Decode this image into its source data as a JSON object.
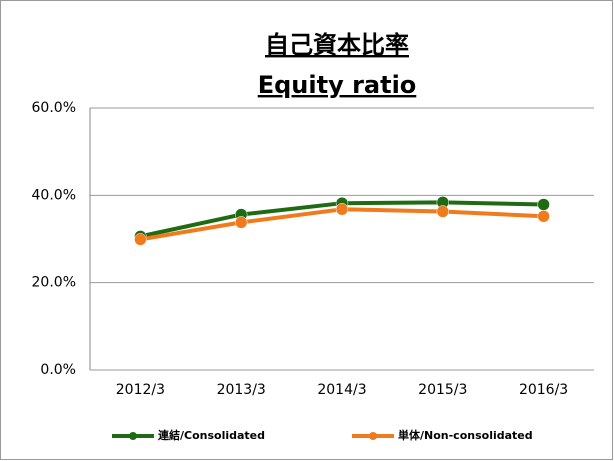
{
  "chart_data": {
    "type": "line",
    "title": "自己資本比率",
    "subtitle": "Equity ratio",
    "categories": [
      "2012/3",
      "2013/3",
      "2014/3",
      "2015/3",
      "2016/3"
    ],
    "series": [
      {
        "name": "連結/Consolidated",
        "color": "#1e6b14",
        "values": [
          30.6,
          35.6,
          38.2,
          38.4,
          37.9
        ]
      },
      {
        "name": "単体/Non-consolidated",
        "color": "#f07a1e",
        "values": [
          29.9,
          33.8,
          36.8,
          36.3,
          35.2
        ]
      }
    ],
    "ylim": [
      0,
      60
    ],
    "yticks": [
      {
        "value": 0,
        "label": "0.0%"
      },
      {
        "value": 20,
        "label": "20.0%"
      },
      {
        "value": 40,
        "label": "40.0%"
      },
      {
        "value": 60,
        "label": "60.0%"
      }
    ],
    "grid": true,
    "legend": "bottom"
  }
}
